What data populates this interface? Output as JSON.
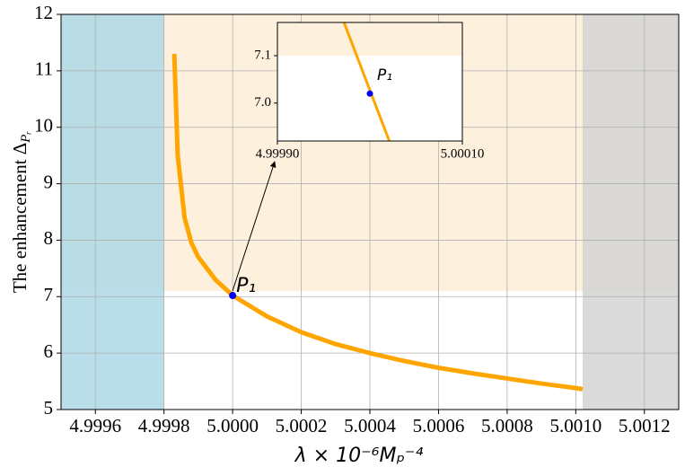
{
  "chart_data": {
    "type": "line",
    "xlabel": "λ × 10⁻⁶Mₚ⁻⁴",
    "ylabel": "The enhancement Δ",
    "ylabel_subscript": "Pᵣ",
    "xlim": [
      4.9995,
      5.0013
    ],
    "ylim": [
      5,
      12
    ],
    "xticks": [
      {
        "value": 4.9996,
        "label": "4.9996"
      },
      {
        "value": 4.9998,
        "label": "4.9998"
      },
      {
        "value": 5.0,
        "label": "5.0000"
      },
      {
        "value": 5.0002,
        "label": "5.0002"
      },
      {
        "value": 5.0004,
        "label": "5.0004"
      },
      {
        "value": 5.0006,
        "label": "5.0006"
      },
      {
        "value": 5.0008,
        "label": "5.0008"
      },
      {
        "value": 5.001,
        "label": "5.0010"
      },
      {
        "value": 5.0012,
        "label": "5.0012"
      }
    ],
    "yticks": [
      5,
      6,
      7,
      8,
      9,
      10,
      11,
      12
    ],
    "grid": true,
    "regions": [
      {
        "xlim": [
          4.9995,
          4.9998
        ],
        "color": "#add8e6"
      },
      {
        "xlim": [
          5.00102,
          5.0013
        ],
        "color": "#d3d3d3"
      }
    ],
    "band": {
      "ylim": [
        7.1,
        12
      ],
      "color": "#fbe0b4"
    },
    "series": [
      {
        "color": "#ffa500",
        "x": [
          4.99983,
          4.99984,
          4.99986,
          4.99988,
          4.9999,
          4.99995,
          5.0,
          5.0001,
          5.0002,
          5.0003,
          5.0004,
          5.0005,
          5.0006,
          5.0007,
          5.0008,
          5.0009,
          5.001,
          5.00102
        ],
        "values": [
          11.3,
          9.5,
          8.4,
          7.95,
          7.7,
          7.3,
          7.02,
          6.65,
          6.37,
          6.16,
          6.0,
          5.86,
          5.74,
          5.64,
          5.55,
          5.46,
          5.38,
          5.36
        ]
      }
    ],
    "annotation": {
      "label": "P₁",
      "x": 5.0,
      "y": 7.02,
      "color": "#0000ff"
    },
    "inset": {
      "xlim": [
        4.9999,
        5.0001
      ],
      "ylim": [
        6.92,
        7.17
      ],
      "xticks": [
        {
          "value": 4.9999,
          "label": "4.99990"
        },
        {
          "value": 5.0001,
          "label": "5.00010"
        }
      ],
      "yticks": [
        {
          "value": 7.0,
          "label": "7.0"
        },
        {
          "value": 7.1,
          "label": "7.1"
        }
      ],
      "x": [
        4.999972,
        5.000021
      ],
      "values": [
        7.17,
        6.92
      ]
    }
  }
}
